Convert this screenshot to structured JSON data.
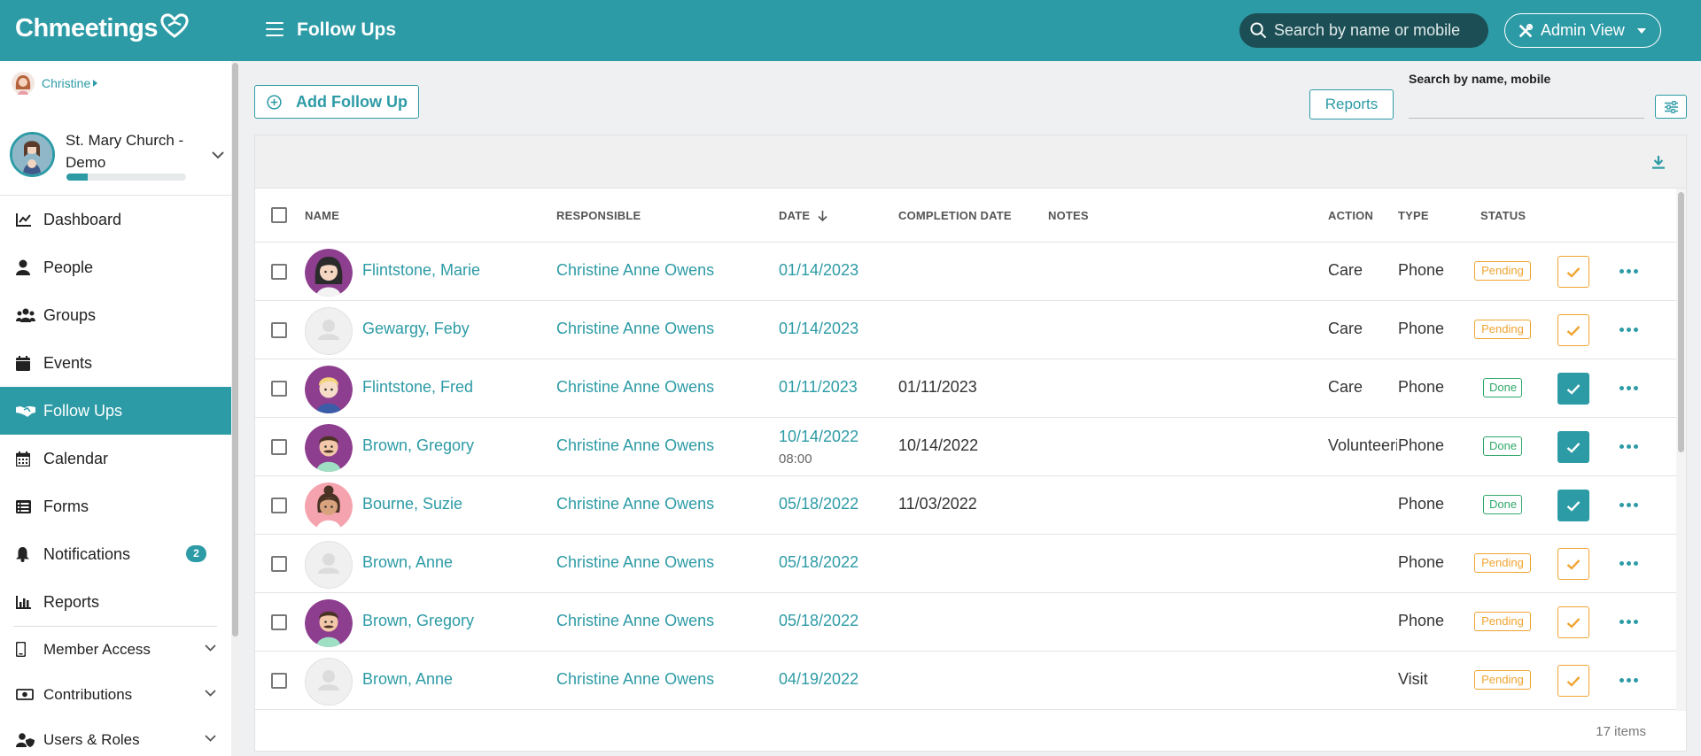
{
  "app": {
    "logo_text": "Chmeetings",
    "page_title": "Follow Ups",
    "search_placeholder": "Search by name or mobile",
    "admin_view_label": "Admin View"
  },
  "user": {
    "name": "Christine"
  },
  "church": {
    "name": "St. Mary Church - Demo",
    "progress": 0.18
  },
  "nav": {
    "items": [
      {
        "key": "dashboard",
        "label": "Dashboard",
        "icon": "chart-line-icon"
      },
      {
        "key": "people",
        "label": "People",
        "icon": "person-icon"
      },
      {
        "key": "groups",
        "label": "Groups",
        "icon": "users-icon"
      },
      {
        "key": "events",
        "label": "Events",
        "icon": "calendar-day-icon"
      },
      {
        "key": "follow-ups",
        "label": "Follow Ups",
        "icon": "handshake-icon",
        "active": true
      },
      {
        "key": "calendar",
        "label": "Calendar",
        "icon": "calendar-grid-icon"
      },
      {
        "key": "forms",
        "label": "Forms",
        "icon": "list-icon"
      },
      {
        "key": "notifications",
        "label": "Notifications",
        "icon": "bell-icon",
        "badge": "2"
      },
      {
        "key": "reports",
        "label": "Reports",
        "icon": "bar-chart-icon"
      }
    ],
    "groups": [
      {
        "key": "member-access",
        "label": "Member Access",
        "icon": "mobile-icon"
      },
      {
        "key": "contributions",
        "label": "Contributions",
        "icon": "money-icon"
      },
      {
        "key": "users-roles",
        "label": "Users & Roles",
        "icon": "user-shield-icon"
      }
    ]
  },
  "toolbar": {
    "add_label": "Add Follow Up",
    "reports_label": "Reports",
    "search_label": "Search by name, mobile"
  },
  "table": {
    "columns": {
      "name": "NAME",
      "responsible": "RESPONSIBLE",
      "date": "DATE",
      "completion": "COMPLETION DATE",
      "notes": "NOTES",
      "action": "ACTION",
      "type": "TYPE",
      "status": "STATUS"
    },
    "rows": [
      {
        "name": "Flintstone, Marie",
        "avatar": "female-dark-hair",
        "responsible": "Christine Anne Owens",
        "date": "01/14/2023",
        "time": "",
        "completion": "",
        "notes": "",
        "action": "Care",
        "type": "Phone",
        "status": "Pending"
      },
      {
        "name": "Gewargy, Feby",
        "avatar": "placeholder",
        "responsible": "Christine Anne Owens",
        "date": "01/14/2023",
        "time": "",
        "completion": "",
        "notes": "",
        "action": "Care",
        "type": "Phone",
        "status": "Pending"
      },
      {
        "name": "Flintstone, Fred",
        "avatar": "male-blond",
        "responsible": "Christine Anne Owens",
        "date": "01/11/2023",
        "time": "",
        "completion": "01/11/2023",
        "notes": "",
        "action": "Care",
        "type": "Phone",
        "status": "Done"
      },
      {
        "name": "Brown, Gregory",
        "avatar": "male-mustache",
        "responsible": "Christine Anne Owens",
        "date": "10/14/2022",
        "time": "08:00",
        "completion": "10/14/2022",
        "notes": "",
        "action": "Volunteeri",
        "type": "Phone",
        "status": "Done"
      },
      {
        "name": "Bourne, Suzie",
        "avatar": "female-bun",
        "responsible": "Christine Anne Owens",
        "date": "05/18/2022",
        "time": "",
        "completion": "11/03/2022",
        "notes": "",
        "action": "",
        "type": "Phone",
        "status": "Done"
      },
      {
        "name": "Brown, Anne",
        "avatar": "placeholder",
        "responsible": "Christine Anne Owens",
        "date": "05/18/2022",
        "time": "",
        "completion": "",
        "notes": "",
        "action": "",
        "type": "Phone",
        "status": "Pending"
      },
      {
        "name": "Brown, Gregory",
        "avatar": "male-mustache",
        "responsible": "Christine Anne Owens",
        "date": "05/18/2022",
        "time": "",
        "completion": "",
        "notes": "",
        "action": "",
        "type": "Phone",
        "status": "Pending"
      },
      {
        "name": "Brown, Anne",
        "avatar": "placeholder",
        "responsible": "Christine Anne Owens",
        "date": "04/19/2022",
        "time": "",
        "completion": "",
        "notes": "",
        "action": "",
        "type": "Visit",
        "status": "Pending"
      }
    ],
    "items_count": "17 items"
  },
  "colors": {
    "brand": "#2d9ba6",
    "pending": "#f0a431",
    "done": "#2fa86a",
    "search_bg": "#1c4f55"
  }
}
